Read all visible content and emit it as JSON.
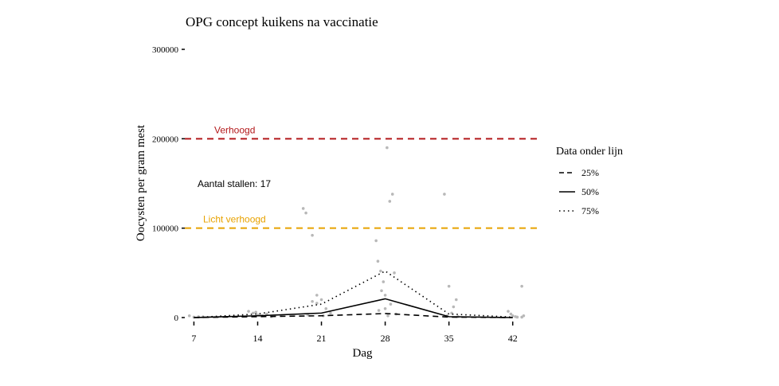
{
  "chart_data": {
    "type": "line",
    "title": "OPG concept kuikens na vaccinatie",
    "xlabel": "Dag",
    "ylabel": "Oocysten per gram mest",
    "xlim": [
      6,
      45
    ],
    "ylim": [
      0,
      300000
    ],
    "x_ticks": [
      7,
      14,
      21,
      28,
      35,
      42
    ],
    "y_ticks": [
      0,
      100000,
      200000,
      300000
    ],
    "grid": false,
    "legend": {
      "title": "Data onder lijn",
      "position": "right",
      "entries": [
        {
          "label": "25%",
          "style": "dashed"
        },
        {
          "label": "50%",
          "style": "solid"
        },
        {
          "label": "75%",
          "style": "dotted"
        }
      ]
    },
    "series": [
      {
        "name": "25%",
        "style": "dashed",
        "x": [
          7,
          14,
          21,
          28,
          35,
          42
        ],
        "y": [
          0,
          1000,
          2000,
          4500,
          500,
          0
        ]
      },
      {
        "name": "50%",
        "style": "solid",
        "x": [
          7,
          14,
          21,
          28,
          35,
          42
        ],
        "y": [
          0,
          2000,
          5000,
          21000,
          1000,
          0
        ]
      },
      {
        "name": "75%",
        "style": "dotted",
        "x": [
          7,
          14,
          21,
          28,
          35,
          42
        ],
        "y": [
          0,
          4000,
          15000,
          52000,
          4000,
          500
        ]
      }
    ],
    "points": {
      "x": [
        6.5,
        7,
        7.5,
        8,
        13,
        13.5,
        14,
        14.5,
        15,
        15.5,
        13.8,
        14.2,
        19,
        19.3,
        20,
        20,
        20.5,
        21,
        21.5,
        22,
        19.5,
        20.5,
        21.2,
        27,
        27.2,
        27.5,
        27.8,
        28,
        28,
        28.2,
        28.5,
        28.8,
        29,
        27.3,
        28.3,
        27.6,
        28.6,
        29.2,
        34.5,
        35,
        35.3,
        35.5,
        35.8,
        36,
        34.8,
        41.5,
        41.8,
        42,
        42.3,
        42.5,
        43,
        43.2,
        43
      ],
      "y": [
        2000,
        500,
        1000,
        800,
        7000,
        5000,
        3000,
        2000,
        4000,
        1000,
        6000,
        2500,
        122000,
        117000,
        92000,
        18000,
        16000,
        20000,
        10000,
        5000,
        3000,
        25000,
        2000,
        86000,
        63000,
        52000,
        40000,
        25000,
        10000,
        190000,
        130000,
        138000,
        50000,
        8000,
        2000,
        30000,
        15000,
        4000,
        138000,
        35000,
        5000,
        12000,
        20000,
        1000,
        2000,
        7000,
        4000,
        2000,
        1000,
        500,
        35000,
        2000,
        500
      ]
    },
    "reference_lines": [
      {
        "label": "Verhoogd",
        "y": 200000,
        "color": "#b3191b",
        "style": "dashed"
      },
      {
        "label": "Licht verhoogd",
        "y": 100000,
        "color": "#e8a200",
        "style": "dashed"
      }
    ],
    "annotation": "Aantal stallen: 17"
  }
}
